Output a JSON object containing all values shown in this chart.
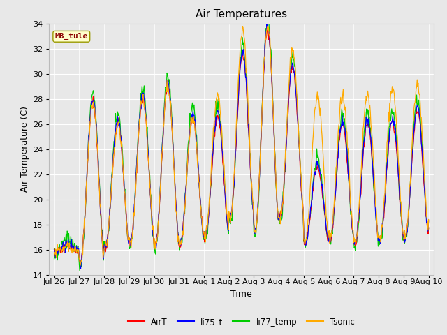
{
  "title": "Air Temperatures",
  "xlabel": "Time",
  "ylabel": "Air Temperature (C)",
  "ylim": [
    14,
    34
  ],
  "x_tick_labels": [
    "Jul 26",
    "Jul 27",
    "Jul 28",
    "Jul 29",
    "Jul 30",
    "Jul 31",
    "Aug 1",
    "Aug 2",
    "Aug 3",
    "Aug 4",
    "Aug 5",
    "Aug 6",
    "Aug 7",
    "Aug 8",
    "Aug 9",
    "Aug 10"
  ],
  "x_tick_positions": [
    0,
    1,
    2,
    3,
    4,
    5,
    6,
    7,
    8,
    9,
    10,
    11,
    12,
    13,
    14,
    15
  ],
  "legend_labels": [
    "AirT",
    "li75_t",
    "li77_temp",
    "Tsonic"
  ],
  "legend_colors": [
    "#ff0000",
    "#0000ff",
    "#00cc00",
    "#ffaa00"
  ],
  "annotation_text": "MB_tule",
  "bg_color": "#e8e8e8",
  "grid_color": "#ffffff",
  "title_fontsize": 11,
  "label_fontsize": 9,
  "tick_fontsize": 8
}
